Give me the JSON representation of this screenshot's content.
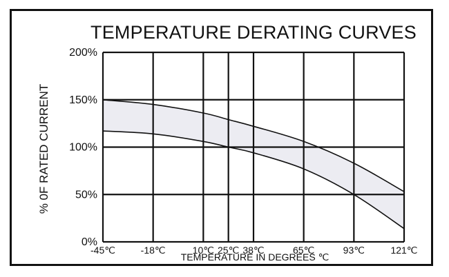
{
  "chart_data": {
    "type": "area",
    "title": "TEMPERATURE DERATING CURVES",
    "xlabel": "TEMPERATURE IN DEGREES ℃",
    "ylabel": "% 0F RATED CURRENT",
    "x_ticks": [
      {
        "value": -45,
        "label": "-45℃"
      },
      {
        "value": -18,
        "label": "-18℃"
      },
      {
        "value": 10,
        "label": "10℃"
      },
      {
        "value": 25,
        "label": "25℃"
      },
      {
        "value": 38,
        "label": "38℃"
      },
      {
        "value": 65,
        "label": "65℃"
      },
      {
        "value": 93,
        "label": "93℃"
      },
      {
        "value": 121,
        "label": "121℃"
      }
    ],
    "y_ticks": [
      {
        "value": 0,
        "label": "0%"
      },
      {
        "value": 50,
        "label": "50%"
      },
      {
        "value": 100,
        "label": "100%"
      },
      {
        "value": 150,
        "label": "150%"
      },
      {
        "value": 200,
        "label": "200%"
      }
    ],
    "xlim": [
      -45,
      121
    ],
    "ylim": [
      0,
      200
    ],
    "grid": true,
    "band_fill": "#ececf2",
    "line_color": "#111111",
    "series": [
      {
        "x": [
          -45,
          -18,
          10,
          25,
          38,
          65,
          93,
          121
        ],
        "y": [
          150,
          145,
          136,
          129,
          122,
          106,
          83,
          53
        ]
      },
      {
        "x": [
          -45,
          -18,
          10,
          25,
          38,
          65,
          93,
          121
        ],
        "y": [
          117,
          114,
          106,
          100,
          94,
          77,
          50,
          14
        ]
      }
    ]
  }
}
